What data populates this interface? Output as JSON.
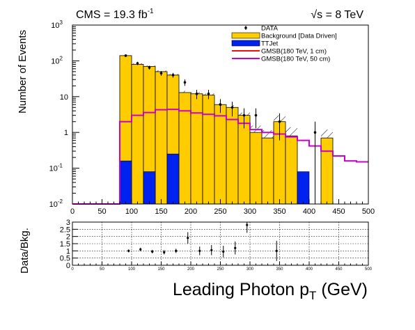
{
  "header": {
    "cms_label": "CMS = 19.3 fb",
    "cms_exponent": "-1",
    "energy_label": "√s = 8 TeV"
  },
  "colors": {
    "background_fill": "#ffcc00",
    "ttjet_fill": "#0022ee",
    "gmsb_1cm_line": "#ee1111",
    "gmsb_50cm_line": "#cc00cc",
    "hatch": "#000000"
  },
  "chart_data": [
    {
      "type": "bar",
      "title": "",
      "xlabel": "",
      "ylabel": "Number of Events",
      "xlim": [
        0,
        500
      ],
      "ylim": [
        0.01,
        1000
      ],
      "yscale": "log",
      "grid": false,
      "legend_position": "top-right",
      "x_ticks": [
        0,
        50,
        100,
        150,
        200,
        250,
        300,
        350,
        400,
        450,
        500
      ],
      "y_ticks": [
        {
          "value": 0.01,
          "label": "10",
          "exp": "-2"
        },
        {
          "value": 0.1,
          "label": "10",
          "exp": "-1"
        },
        {
          "value": 1,
          "label": "1",
          "exp": ""
        },
        {
          "value": 10,
          "label": "10",
          "exp": ""
        },
        {
          "value": 100,
          "label": "10",
          "exp": "2"
        },
        {
          "value": 1000,
          "label": "10",
          "exp": "3"
        }
      ],
      "legend": [
        {
          "label": "DATA",
          "kind": "marker"
        },
        {
          "label": "Background [Data Driven]",
          "kind": "fill-yellow"
        },
        {
          "label": "TTJet",
          "kind": "fill-blue"
        },
        {
          "label": "GMSB(180 TeV, 1 cm)",
          "kind": "line-red"
        },
        {
          "label": "GMSB(180 TeV, 50 cm)",
          "kind": "line-magenta"
        }
      ],
      "bin_edges": [
        0,
        20,
        40,
        60,
        80,
        100,
        120,
        140,
        160,
        180,
        200,
        220,
        240,
        260,
        280,
        300,
        320,
        340,
        360,
        380,
        400,
        420,
        440,
        460,
        480,
        500
      ],
      "background": [
        0,
        0,
        0,
        0,
        140,
        80,
        70,
        50,
        40,
        13,
        12,
        11,
        6,
        5,
        3,
        1.0,
        0.7,
        2.0,
        0.8,
        0,
        0,
        0.7,
        0,
        0,
        0
      ],
      "background_uncertainty": [
        0,
        0,
        0,
        0,
        10,
        6,
        5,
        4,
        3,
        1.5,
        1.4,
        1.3,
        0.9,
        0.8,
        0.6,
        0.55,
        0.45,
        1.0,
        0.6,
        0,
        0,
        0.5,
        0,
        0,
        0
      ],
      "ttjet": [
        0,
        0,
        0,
        0,
        0.16,
        0,
        0.08,
        0,
        0.25,
        0,
        0,
        0,
        0,
        0,
        0,
        0,
        0,
        0,
        0,
        0.08,
        0,
        0,
        0,
        0,
        0
      ],
      "gmsb_50cm": [
        0.01,
        0.01,
        0.01,
        0.01,
        2.0,
        3.0,
        3.6,
        4.3,
        4.4,
        4.0,
        3.5,
        3.2,
        2.9,
        2.3,
        1.8,
        1.2,
        1.0,
        0.9,
        0.75,
        0.6,
        0.42,
        0.3,
        0.22,
        0.16,
        0.15
      ],
      "data_points": [
        {
          "x": 90,
          "y": 140,
          "err": 12
        },
        {
          "x": 110,
          "y": 85,
          "err": 9
        },
        {
          "x": 130,
          "y": 65,
          "err": 8
        },
        {
          "x": 150,
          "y": 45,
          "err": 7
        },
        {
          "x": 170,
          "y": 40,
          "err": 6
        },
        {
          "x": 190,
          "y": 25,
          "err": 5
        },
        {
          "x": 210,
          "y": 12,
          "err": 3.5
        },
        {
          "x": 230,
          "y": 12,
          "err": 3.5
        },
        {
          "x": 250,
          "y": 6,
          "err": 2.5
        },
        {
          "x": 270,
          "y": 5,
          "err": 2.2
        },
        {
          "x": 290,
          "y": 3,
          "err": 1.7
        },
        {
          "x": 310,
          "y": 3,
          "err": 1.7
        },
        {
          "x": 350,
          "y": 2,
          "err": 1.4
        },
        {
          "x": 410,
          "y": 1,
          "err": 1.0
        }
      ]
    },
    {
      "type": "scatter",
      "title": "",
      "xlabel": "Leading Photon p",
      "xlabel_subscript": "T",
      "xlabel_unit": " (GeV)",
      "ylabel": "Data/Bkg.",
      "xlim": [
        0,
        500
      ],
      "ylim": [
        0,
        3
      ],
      "grid": true,
      "x_ticks": [
        0,
        50,
        100,
        150,
        200,
        250,
        300,
        350,
        400,
        450,
        500
      ],
      "y_ticks": [
        {
          "value": 0,
          "label": "0"
        },
        {
          "value": 0.5,
          "label": "0.5"
        },
        {
          "value": 1,
          "label": "1"
        },
        {
          "value": 1.5,
          "label": "1.5"
        },
        {
          "value": 2,
          "label": "2"
        },
        {
          "value": 2.5,
          "label": "2.5"
        },
        {
          "value": 3,
          "label": "3"
        }
      ],
      "points": [
        {
          "x": 95,
          "y": 1.0,
          "err": 0.1
        },
        {
          "x": 115,
          "y": 1.1,
          "err": 0.12
        },
        {
          "x": 135,
          "y": 0.95,
          "err": 0.12
        },
        {
          "x": 155,
          "y": 0.9,
          "err": 0.15
        },
        {
          "x": 175,
          "y": 1.0,
          "err": 0.15
        },
        {
          "x": 195,
          "y": 1.9,
          "err": 0.4
        },
        {
          "x": 215,
          "y": 1.0,
          "err": 0.3
        },
        {
          "x": 235,
          "y": 1.05,
          "err": 0.35
        },
        {
          "x": 255,
          "y": 0.95,
          "err": 0.4
        },
        {
          "x": 275,
          "y": 1.2,
          "err": 0.45
        },
        {
          "x": 295,
          "y": 2.8,
          "err": 0.55
        },
        {
          "x": 345,
          "y": 1.0,
          "err": 0.7
        }
      ]
    }
  ]
}
